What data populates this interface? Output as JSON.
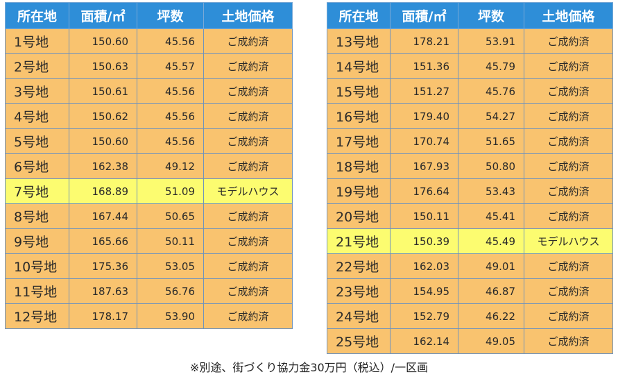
{
  "headers": [
    "所在地",
    "面積/㎡",
    "坪数",
    "土地価格"
  ],
  "left_table": [
    {
      "lot": "1号地",
      "area": "150.60",
      "tsubo": "45.56",
      "price": "ご成約済",
      "model": false
    },
    {
      "lot": "2号地",
      "area": "150.63",
      "tsubo": "45.57",
      "price": "ご成約済",
      "model": false
    },
    {
      "lot": "3号地",
      "area": "150.61",
      "tsubo": "45.56",
      "price": "ご成約済",
      "model": false
    },
    {
      "lot": "4号地",
      "area": "150.62",
      "tsubo": "45.56",
      "price": "ご成約済",
      "model": false
    },
    {
      "lot": "5号地",
      "area": "150.60",
      "tsubo": "45.56",
      "price": "ご成約済",
      "model": false
    },
    {
      "lot": "6号地",
      "area": "162.38",
      "tsubo": "49.12",
      "price": "ご成約済",
      "model": false
    },
    {
      "lot": "7号地",
      "area": "168.89",
      "tsubo": "51.09",
      "price": "モデルハウス",
      "model": true
    },
    {
      "lot": "8号地",
      "area": "167.44",
      "tsubo": "50.65",
      "price": "ご成約済",
      "model": false
    },
    {
      "lot": "9号地",
      "area": "165.66",
      "tsubo": "50.11",
      "price": "ご成約済",
      "model": false
    },
    {
      "lot": "10号地",
      "area": "175.36",
      "tsubo": "53.05",
      "price": "ご成約済",
      "model": false
    },
    {
      "lot": "11号地",
      "area": "187.63",
      "tsubo": "56.76",
      "price": "ご成約済",
      "model": false
    },
    {
      "lot": "12号地",
      "area": "178.17",
      "tsubo": "53.90",
      "price": "ご成約済",
      "model": false
    }
  ],
  "right_table": [
    {
      "lot": "13号地",
      "area": "178.21",
      "tsubo": "53.91",
      "price": "ご成約済",
      "model": false
    },
    {
      "lot": "14号地",
      "area": "151.36",
      "tsubo": "45.79",
      "price": "ご成約済",
      "model": false
    },
    {
      "lot": "15号地",
      "area": "151.27",
      "tsubo": "45.76",
      "price": "ご成約済",
      "model": false
    },
    {
      "lot": "16号地",
      "area": "179.40",
      "tsubo": "54.27",
      "price": "ご成約済",
      "model": false
    },
    {
      "lot": "17号地",
      "area": "170.74",
      "tsubo": "51.65",
      "price": "ご成約済",
      "model": false
    },
    {
      "lot": "18号地",
      "area": "167.93",
      "tsubo": "50.80",
      "price": "ご成約済",
      "model": false
    },
    {
      "lot": "19号地",
      "area": "176.64",
      "tsubo": "53.43",
      "price": "ご成約済",
      "model": false
    },
    {
      "lot": "20号地",
      "area": "150.11",
      "tsubo": "45.41",
      "price": "ご成約済",
      "model": false
    },
    {
      "lot": "21号地",
      "area": "150.39",
      "tsubo": "45.49",
      "price": "モデルハウス",
      "model": true
    },
    {
      "lot": "22号地",
      "area": "162.03",
      "tsubo": "49.01",
      "price": "ご成約済",
      "model": false
    },
    {
      "lot": "23号地",
      "area": "154.95",
      "tsubo": "46.87",
      "price": "ご成約済",
      "model": false
    },
    {
      "lot": "24号地",
      "area": "152.79",
      "tsubo": "46.22",
      "price": "ご成約済",
      "model": false
    },
    {
      "lot": "25号地",
      "area": "162.14",
      "tsubo": "49.05",
      "price": "ご成約済",
      "model": false
    }
  ],
  "colors": {
    "header": "#2e8ed8",
    "row": "#f9c36f",
    "model_row": "#fcfc70"
  },
  "footnote": "※別途、街づくり協力金30万円（税込）/一区画"
}
